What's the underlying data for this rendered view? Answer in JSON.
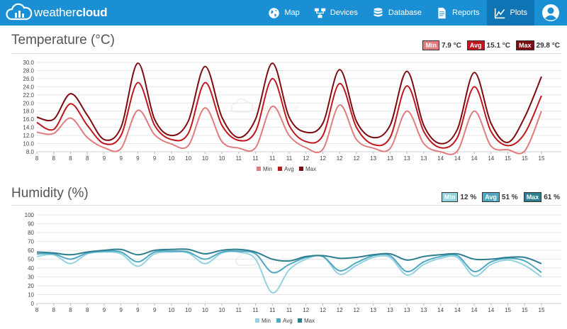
{
  "app": {
    "brand_light": "weather",
    "brand_bold": "cloud",
    "nav": [
      {
        "label": "Map",
        "icon": "globe-icon"
      },
      {
        "label": "Devices",
        "icon": "devices-icon"
      },
      {
        "label": "Database",
        "icon": "database-icon"
      },
      {
        "label": "Reports",
        "icon": "report-icon"
      },
      {
        "label": "Plots",
        "icon": "line-chart-icon",
        "active": true
      },
      {
        "label": "",
        "icon": "user-icon"
      }
    ],
    "colors": {
      "topbar": "#1a8fd3",
      "active_nav": "#0f74b3"
    }
  },
  "temperature": {
    "title": "Temperature (°C)",
    "stats": [
      {
        "tag": "Min",
        "value": "7.9 °C",
        "color": "#e07b7e"
      },
      {
        "tag": "Avg",
        "value": "15.1 °C",
        "color": "#c0171f"
      },
      {
        "tag": "Max",
        "value": "29.8 °C",
        "color": "#7d0a0f"
      }
    ]
  },
  "humidity": {
    "title": "Humidity (%)",
    "stats": [
      {
        "tag": "Min",
        "value": "12 %",
        "color": "#93d2de"
      },
      {
        "tag": "Avg",
        "value": "51 %",
        "color": "#4fa8c2"
      },
      {
        "tag": "Max",
        "value": "61 %",
        "color": "#2e7e8f"
      }
    ]
  },
  "chart_data": [
    {
      "type": "line",
      "x": [
        "8",
        "8",
        "8",
        "8",
        "9",
        "9",
        "9",
        "9",
        "10",
        "10",
        "10",
        "10",
        "11",
        "11",
        "11",
        "11",
        "12",
        "12",
        "12",
        "12",
        "13",
        "13",
        "13",
        "13",
        "14",
        "14",
        "14",
        "14",
        "15",
        "15",
        "15"
      ],
      "ylim": [
        8.0,
        30.0
      ],
      "yticks": [
        "8.0",
        "10.0",
        "12.0",
        "14.0",
        "16.0",
        "18.0",
        "20.0",
        "22.0",
        "24.0",
        "26.0",
        "28.0",
        "30.0"
      ],
      "series": [
        {
          "name": "Min",
          "color": "#e07b7e",
          "values": [
            12.8,
            12.5,
            16.3,
            11.5,
            9.0,
            8.8,
            18.2,
            12.2,
            9.9,
            9.5,
            18.8,
            10.5,
            8.9,
            9.0,
            19.2,
            12.0,
            9.0,
            8.6,
            19.5,
            11.0,
            8.9,
            8.8,
            18.0,
            10.0,
            8.0,
            8.2,
            18.0,
            9.4,
            8.5,
            8.2,
            18.0
          ]
        },
        {
          "name": "Avg",
          "color": "#c0171f",
          "values": [
            15.2,
            13.5,
            19.8,
            14.5,
            10.0,
            12.0,
            25.0,
            14.5,
            11.0,
            12.5,
            25.0,
            14.5,
            10.8,
            13.0,
            26.0,
            14.5,
            10.5,
            12.0,
            24.8,
            14.0,
            9.8,
            11.5,
            24.2,
            13.0,
            9.0,
            11.5,
            24.0,
            13.0,
            9.5,
            12.5,
            21.8
          ]
        },
        {
          "name": "Max",
          "color": "#7d0a0f",
          "values": [
            16.5,
            16.0,
            22.3,
            17.0,
            11.0,
            14.0,
            29.8,
            16.0,
            12.0,
            15.5,
            29.0,
            16.5,
            11.5,
            16.0,
            29.8,
            16.5,
            12.8,
            15.0,
            28.2,
            15.5,
            11.5,
            14.5,
            27.8,
            14.5,
            10.0,
            13.5,
            27.5,
            15.0,
            10.3,
            16.5,
            26.5
          ]
        }
      ]
    },
    {
      "type": "line",
      "x": [
        "8",
        "8",
        "8",
        "8",
        "9",
        "9",
        "9",
        "9",
        "10",
        "10",
        "10",
        "10",
        "11",
        "11",
        "11",
        "11",
        "12",
        "12",
        "12",
        "12",
        "13",
        "13",
        "13",
        "13",
        "14",
        "14",
        "14",
        "14",
        "15",
        "15",
        "15"
      ],
      "ylim": [
        0,
        100
      ],
      "yticks": [
        "0",
        "10",
        "20",
        "30",
        "40",
        "50",
        "60",
        "70",
        "80",
        "90",
        "100"
      ],
      "series": [
        {
          "name": "Min",
          "color": "#93d2de",
          "values": [
            53,
            55,
            45,
            56,
            58,
            56,
            42,
            56,
            58,
            57,
            45,
            57,
            58,
            50,
            12,
            38,
            50,
            53,
            33,
            43,
            52,
            52,
            32,
            44,
            51,
            52,
            31,
            44,
            49,
            43,
            30
          ]
        },
        {
          "name": "Avg",
          "color": "#4fa8c2",
          "values": [
            56,
            56,
            50,
            57,
            59,
            58,
            47,
            58,
            59,
            58,
            50,
            58,
            59,
            56,
            35,
            44,
            52,
            53,
            37,
            46,
            54,
            54,
            36,
            47,
            53,
            54,
            36,
            47,
            51,
            48,
            35
          ]
        },
        {
          "name": "Max",
          "color": "#2e7e8f",
          "values": [
            58,
            57,
            55,
            58,
            60,
            61,
            55,
            60,
            61,
            61,
            56,
            60,
            61,
            58,
            50,
            48,
            53,
            54,
            51,
            52,
            55,
            56,
            49,
            53,
            55,
            56,
            50,
            50,
            52,
            52,
            45
          ]
        }
      ]
    }
  ]
}
